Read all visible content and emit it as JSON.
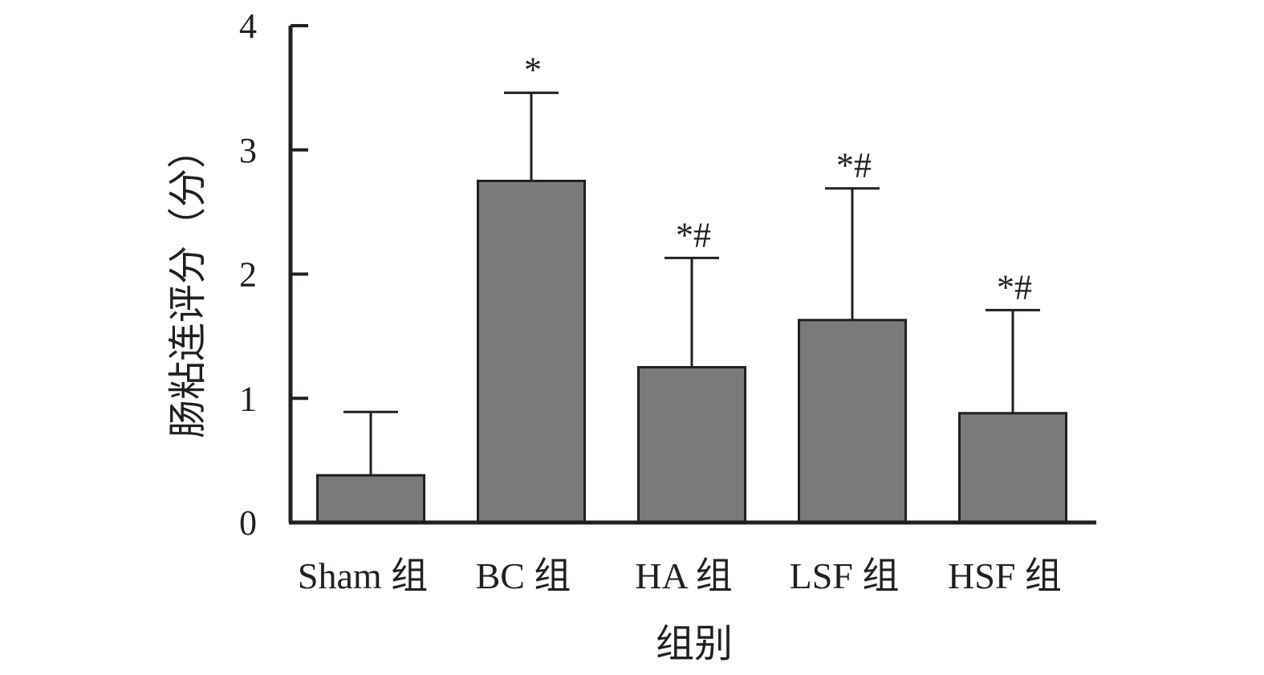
{
  "chart_data": {
    "type": "bar",
    "title": "",
    "xlabel": "组别",
    "ylabel": "肠粘连评分（分）",
    "ylim": [
      0,
      4
    ],
    "yticks": [
      "0",
      "1",
      "2",
      "3",
      "4"
    ],
    "categories": [
      "Sham 组",
      "BC 组",
      "HA 组",
      "LSF 组",
      "HSF 组"
    ],
    "values": [
      0.38,
      2.75,
      1.25,
      1.63,
      0.88
    ],
    "errors": [
      0.51,
      0.71,
      0.88,
      1.06,
      0.83
    ],
    "significance": [
      "",
      "*",
      "*#",
      "*#",
      "*#"
    ],
    "grid": false,
    "colors": {
      "bar": "#7b7a7b",
      "stroke": "#231f20"
    }
  }
}
